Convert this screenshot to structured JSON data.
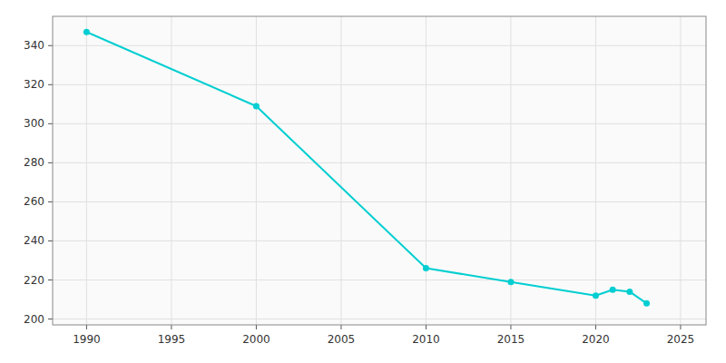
{
  "chart_data": {
    "type": "line",
    "x": [
      1990,
      2000,
      2010,
      2015,
      2020,
      2021,
      2022,
      2023
    ],
    "values": [
      347,
      309,
      226,
      219,
      212,
      215,
      214,
      208
    ],
    "color": "#00CED1",
    "marker": "circle",
    "xlim": [
      1988,
      2026.5
    ],
    "ylim": [
      197,
      355
    ],
    "xticks": [
      1990,
      1995,
      2000,
      2005,
      2010,
      2015,
      2020,
      2025
    ],
    "yticks": [
      200,
      220,
      240,
      260,
      280,
      300,
      320,
      340
    ],
    "grid": true
  }
}
